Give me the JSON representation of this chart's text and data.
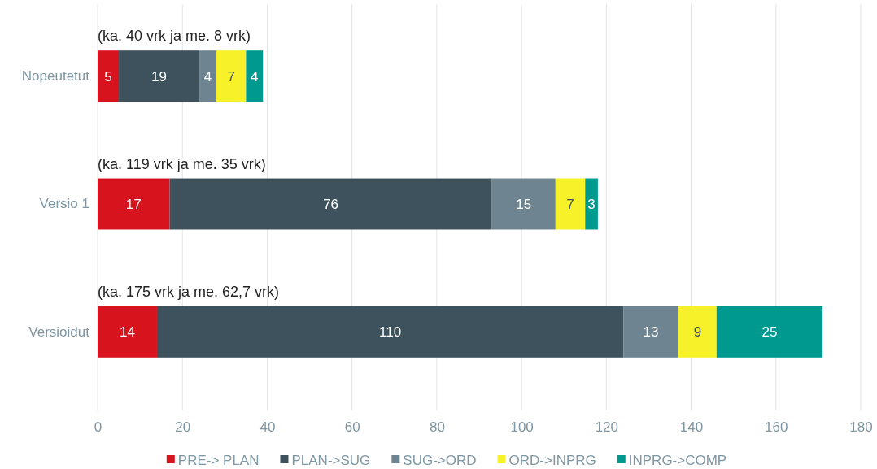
{
  "chart_data": {
    "type": "bar",
    "orientation": "horizontal",
    "stacked": true,
    "categories": [
      "Nopeutetut",
      "Versio 1",
      "Versioidut"
    ],
    "series": [
      {
        "name": "PRE-> PLAN",
        "color": "#d7141e",
        "values": [
          5,
          17,
          14
        ]
      },
      {
        "name": "PLAN->SUG",
        "color": "#3d525c",
        "values": [
          19,
          76,
          110
        ]
      },
      {
        "name": "SUG->ORD",
        "color": "#6e8591",
        "values": [
          4,
          15,
          13
        ]
      },
      {
        "name": "ORD->INPRG",
        "color": "#f7f12a",
        "values": [
          7,
          7,
          9
        ]
      },
      {
        "name": "INPRG->COMP",
        "color": "#00998f",
        "values": [
          4,
          3,
          25
        ]
      }
    ],
    "xlim": [
      0,
      180
    ],
    "xticks": [
      0,
      20,
      40,
      60,
      80,
      100,
      120,
      140,
      160,
      180
    ],
    "grid": "x",
    "legend": "bottom",
    "data_labels": true,
    "annotations": [
      "(ka. 40 vrk ja me. 8 vrk)",
      "(ka. 119 vrk ja me. 35 vrk)",
      "(ka. 175 vrk ja me. 62,7 vrk)"
    ]
  }
}
